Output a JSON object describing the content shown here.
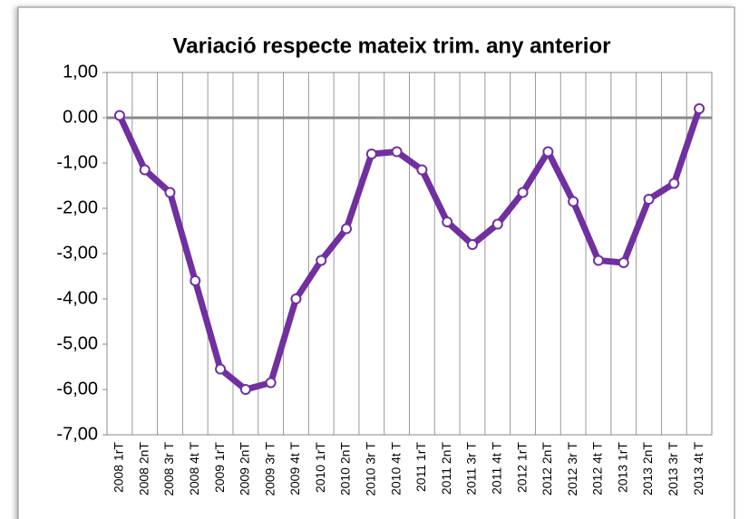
{
  "chart_data": {
    "type": "line",
    "title": "Variació respecte mateix trim. any anterior",
    "categories": [
      "2008 1rT",
      "2008 2nT",
      "2008 3r T",
      "2008 4t T",
      "2009 1rT",
      "2009 2nT",
      "2009 3r T",
      "2009 4t T",
      "2010 1rT",
      "2010 2nT",
      "2010 3r T",
      "2010 4t T",
      "2011 1rT",
      "2011 2nT",
      "2011 3r T",
      "2011 4t T",
      "2012 1rT",
      "2012 2nT",
      "2012 3r T",
      "2012 4t T",
      "2013 1rT",
      "2013 2nT",
      "2013 3r T",
      "2013 4t T"
    ],
    "values": [
      0.05,
      -1.15,
      -1.65,
      -3.6,
      -5.55,
      -6.0,
      -5.85,
      -4.0,
      -3.15,
      -2.45,
      -0.8,
      -0.75,
      -1.15,
      -2.3,
      -2.8,
      -2.35,
      -1.65,
      -0.75,
      -1.85,
      -3.15,
      -3.2,
      -1.8,
      -1.45,
      0.2
    ],
    "color": "#7030a0",
    "ylim": [
      -7,
      1
    ],
    "yticks": [
      {
        "value": 1,
        "label": "1,00"
      },
      {
        "value": 0,
        "label": "0.00"
      },
      {
        "value": -1,
        "label": "-1,00"
      },
      {
        "value": -2,
        "label": "-2,00"
      },
      {
        "value": -3,
        "label": "-3,00"
      },
      {
        "value": -4,
        "label": "-4,00"
      },
      {
        "value": -5,
        "label": "-5,00"
      },
      {
        "value": -6,
        "label": "-6,00"
      },
      {
        "value": -7,
        "label": "-7,00"
      }
    ]
  }
}
